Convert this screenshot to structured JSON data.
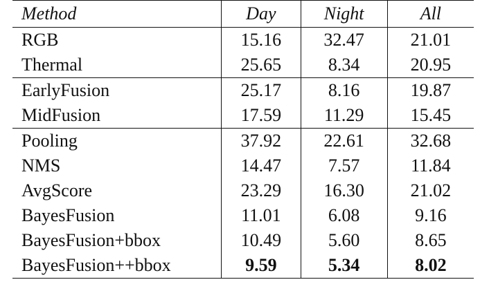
{
  "table": {
    "headers": [
      "Method",
      "Day",
      "Night",
      "All"
    ],
    "groups": [
      [
        {
          "method": "RGB",
          "day": "15.16",
          "night": "32.47",
          "all": "21.01"
        },
        {
          "method": "Thermal",
          "day": "25.65",
          "night": "8.34",
          "all": "20.95"
        }
      ],
      [
        {
          "method": "EarlyFusion",
          "day": "25.17",
          "night": "8.16",
          "all": "19.87"
        },
        {
          "method": "MidFusion",
          "day": "17.59",
          "night": "11.29",
          "all": "15.45"
        }
      ],
      [
        {
          "method": "Pooling",
          "day": "37.92",
          "night": "22.61",
          "all": "32.68"
        },
        {
          "method": "NMS",
          "day": "14.47",
          "night": "7.57",
          "all": "11.84"
        },
        {
          "method": "AvgScore",
          "day": "23.29",
          "night": "16.30",
          "all": "21.02"
        },
        {
          "method": "BayesFusion",
          "day": "11.01",
          "night": "6.08",
          "all": "9.16"
        },
        {
          "method": "BayesFusion+bbox",
          "day": "10.49",
          "night": "5.60",
          "all": "8.65"
        },
        {
          "method": "BayesFusion++bbox",
          "day": "9.59",
          "night": "5.34",
          "all": "8.02",
          "bold": true
        }
      ]
    ]
  }
}
